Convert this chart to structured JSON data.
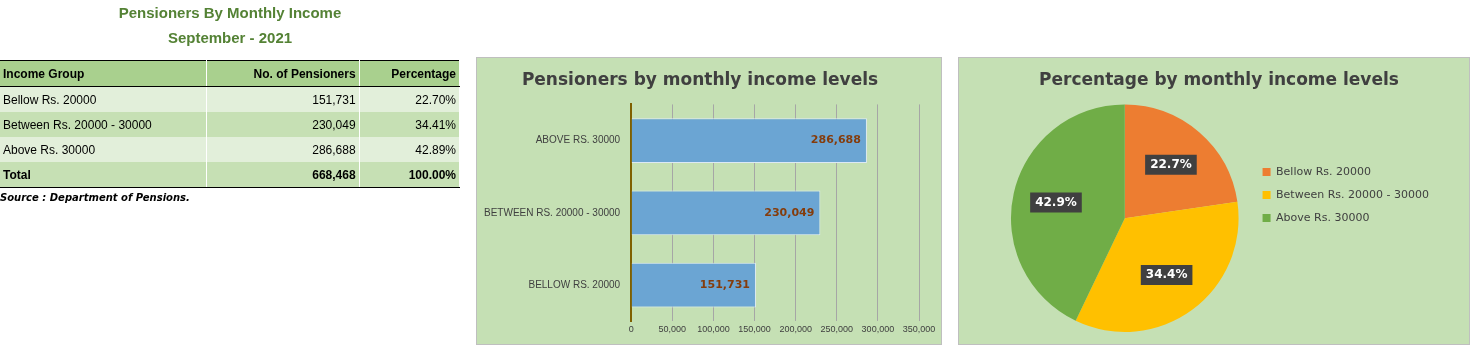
{
  "chart_data": [
    {
      "type": "other",
      "title": "Pensioners By Monthly Income",
      "subtitle": "September - 2021",
      "ylabel": "Income Group",
      "categories": [
        "Bellow Rs. 20000",
        "Between Rs. 20000 - 30000",
        "Above Rs. 30000",
        "Total"
      ],
      "series": [
        {
          "name": "No. of Pensioners",
          "colors": [
            "#e2efda",
            "#c6e0b4",
            "#e2efda",
            "#c6e0b4"
          ],
          "values": [
            151731,
            230049,
            286688,
            668468
          ],
          "value_labels": [
            "151,731",
            "230,049",
            "286,688",
            "668,468"
          ]
        },
        {
          "name": "Percentage",
          "colors": [
            "#e2efda",
            "#c6e0b4",
            "#e2efda",
            "#c6e0b4"
          ],
          "values": [
            22.7,
            34.41,
            42.89,
            100.0
          ],
          "value_labels": [
            "22.70%",
            "34.41%",
            "42.89%",
            "100.00%"
          ]
        }
      ],
      "annotations": [
        "Source : Department of Pensions."
      ]
    },
    {
      "type": "bar",
      "orientation": "horizontal",
      "title": "Pensioners by monthly income levels",
      "categories": [
        "ABOVE RS. 30000",
        "BETWEEN RS. 20000 - 30000",
        "BELLOW RS. 20000"
      ],
      "values": [
        286688,
        230049,
        151731
      ],
      "color": "#6ba5d3",
      "value_labels": [
        "286,688",
        "230,049",
        "151,731"
      ],
      "xlim": [
        0,
        350000
      ],
      "xticks": [
        0,
        {
          "value": 50000,
          "label": "50,000"
        },
        {
          "value": 100000,
          "label": "100,000"
        },
        {
          "value": 150000,
          "label": "150,000"
        },
        {
          "value": 200000,
          "label": "200,000"
        },
        {
          "value": 250000,
          "label": "250,000"
        },
        {
          "value": 300000,
          "label": "300,000"
        },
        {
          "value": 350000,
          "label": "350,000"
        }
      ],
      "grid": "x"
    },
    {
      "type": "pie",
      "title": "Percentage by monthly income levels",
      "categories": [
        "Bellow Rs. 20000",
        "Between Rs. 20000 - 30000",
        "Above Rs. 30000"
      ],
      "values": [
        22.7,
        34.4,
        42.9
      ],
      "colors": [
        "#ed7d31",
        "#ffc000",
        "#70ad47"
      ],
      "value_labels": [
        "22.7%",
        "34.4%",
        "42.9%"
      ],
      "legend": "right"
    }
  ]
}
